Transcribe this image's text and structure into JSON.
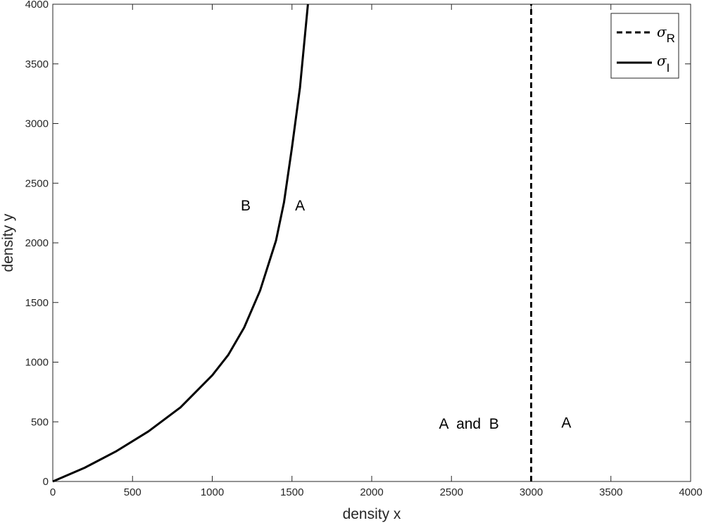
{
  "chart_data": {
    "type": "line",
    "title": "",
    "xlabel": "density  x",
    "ylabel": "density  y",
    "xlim": [
      0,
      4000
    ],
    "ylim": [
      0,
      4000
    ],
    "xticks": [
      0,
      500,
      1000,
      1500,
      2000,
      2500,
      3000,
      3500,
      4000
    ],
    "yticks": [
      0,
      500,
      1000,
      1500,
      2000,
      2500,
      3000,
      3500,
      4000
    ],
    "grid": false,
    "legend_position": "top-right",
    "series": [
      {
        "name": "σ_R",
        "legend_symbol": "σ",
        "legend_subscript": "R",
        "style": "dashed",
        "color": "#000000",
        "x": [
          3000,
          3000
        ],
        "y": [
          0,
          4000
        ]
      },
      {
        "name": "σ_I",
        "legend_symbol": "σ",
        "legend_subscript": "I",
        "style": "solid",
        "color": "#000000",
        "x": [
          0,
          200,
          400,
          600,
          800,
          1000,
          1100,
          1200,
          1300,
          1400,
          1450,
          1500,
          1550,
          1600
        ],
        "y": [
          0,
          115,
          255,
          420,
          620,
          890,
          1060,
          1290,
          1600,
          2020,
          2340,
          2800,
          3300,
          4000
        ]
      }
    ],
    "annotations": [
      {
        "text": "B",
        "x": 1210,
        "y": 2320
      },
      {
        "text": "A",
        "x": 1550,
        "y": 2320
      },
      {
        "text": "A  and  B",
        "x": 2610,
        "y": 490
      },
      {
        "text": "A",
        "x": 3220,
        "y": 500
      }
    ]
  }
}
